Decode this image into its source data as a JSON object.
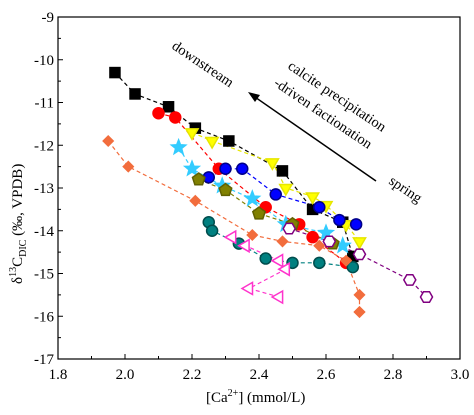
{
  "chart_data": {
    "type": "scatter",
    "xlim": [
      1.8,
      3.0
    ],
    "ylim": [
      -17,
      -9
    ],
    "x_ticks": [
      {
        "value": 1.8,
        "label": "1.8"
      },
      {
        "value": 2.0,
        "label": "2.0"
      },
      {
        "value": 2.2,
        "label": "2.2"
      },
      {
        "value": 2.4,
        "label": "2.4"
      },
      {
        "value": 2.6,
        "label": "2.6"
      },
      {
        "value": 2.8,
        "label": "2.8"
      },
      {
        "value": 3.0,
        "label": "3.0"
      }
    ],
    "y_ticks": [
      {
        "value": -9,
        "label": "-9"
      },
      {
        "value": -10,
        "label": "-10"
      },
      {
        "value": -11,
        "label": "-11"
      },
      {
        "value": -12,
        "label": "-12"
      },
      {
        "value": -13,
        "label": "-13"
      },
      {
        "value": -14,
        "label": "-14"
      },
      {
        "value": -15,
        "label": "-15"
      },
      {
        "value": -16,
        "label": "-16"
      },
      {
        "value": -17,
        "label": "-17"
      }
    ],
    "xlabel_parts": {
      "pre": "[Ca",
      "sup": "2+",
      "post": "] (mmol/L)"
    },
    "ylabel_parts": {
      "delta": "δ",
      "sup": "13",
      "c": "C",
      "sub": "DIC",
      "post": " (‰, VPDB)"
    },
    "annotations": {
      "downstream": "downstream",
      "line1": "calcite precipitation",
      "line2": "-driven factionation",
      "spring": "spring"
    },
    "grid": false,
    "series": [
      {
        "marker": "square",
        "color": "#000000",
        "edge": "#000000",
        "x": [
          1.97,
          2.03,
          2.13,
          2.21,
          2.31,
          2.47,
          2.56,
          2.65,
          2.68
        ],
        "y": [
          -10.3,
          -10.8,
          -11.1,
          -11.6,
          -11.9,
          -12.6,
          -13.5,
          -13.8,
          -14.6
        ]
      },
      {
        "marker": "circle",
        "color": "#ff0000",
        "edge": "#ff0000",
        "x": [
          2.1,
          2.15,
          2.28,
          2.42,
          2.52,
          2.56,
          2.66
        ],
        "y": [
          -11.25,
          -11.35,
          -12.55,
          -13.45,
          -13.85,
          -14.15,
          -14.75
        ]
      },
      {
        "marker": "triangle-down",
        "color": "#ffff00",
        "edge": "#e6e600",
        "x": [
          2.2,
          2.26,
          2.44,
          2.48,
          2.56,
          2.6,
          2.66,
          2.7
        ],
        "y": [
          -11.7,
          -11.9,
          -12.4,
          -13.0,
          -13.2,
          -13.4,
          -13.85,
          -14.25
        ]
      },
      {
        "marker": "circle",
        "color": "#0000ff",
        "edge": "#000088",
        "x": [
          2.25,
          2.3,
          2.35,
          2.45,
          2.58,
          2.64,
          2.69
        ],
        "y": [
          -12.75,
          -12.55,
          -12.55,
          -13.15,
          -13.45,
          -13.75,
          -13.85
        ]
      },
      {
        "marker": "star",
        "color": "#33ccff",
        "edge": "#33ccff",
        "x": [
          2.16,
          2.2,
          2.29,
          2.38,
          2.48,
          2.6,
          2.65
        ],
        "y": [
          -12.05,
          -12.55,
          -12.95,
          -13.25,
          -13.85,
          -14.05,
          -14.35
        ]
      },
      {
        "marker": "pentagon",
        "color": "#808000",
        "edge": "#606000",
        "x": [
          2.22,
          2.3,
          2.4,
          2.5,
          2.62
        ],
        "y": [
          -12.8,
          -13.05,
          -13.6,
          -13.85,
          -14.3
        ]
      },
      {
        "marker": "hexagon",
        "color": "#ffffff",
        "edge": "#800080",
        "x": [
          2.49,
          2.61,
          2.7,
          2.85,
          2.9
        ],
        "y": [
          -13.95,
          -14.25,
          -14.55,
          -15.15,
          -15.55
        ]
      },
      {
        "marker": "circle",
        "color": "#008080",
        "edge": "#004d4d",
        "x": [
          2.25,
          2.26,
          2.34,
          2.42,
          2.5,
          2.58,
          2.68
        ],
        "y": [
          -13.8,
          -14.0,
          -14.3,
          -14.65,
          -14.75,
          -14.75,
          -14.85
        ]
      },
      {
        "marker": "triangle-left",
        "color": "#ffffff",
        "edge": "#ff33cc",
        "x": [
          2.32,
          2.36,
          2.46,
          2.48,
          2.37,
          2.46
        ],
        "y": [
          -14.15,
          -14.35,
          -14.7,
          -14.9,
          -15.35,
          -15.55
        ]
      },
      {
        "marker": "diamond",
        "color": "#f26d3d",
        "edge": "#f26d3d",
        "x": [
          1.95,
          2.01,
          2.21,
          2.38,
          2.47,
          2.58,
          2.66,
          2.7,
          2.7,
          2.7
        ],
        "y": [
          -11.9,
          -12.5,
          -13.3,
          -14.1,
          -14.25,
          -14.35,
          -14.7,
          -15.5,
          -15.9,
          -15.9
        ]
      }
    ]
  }
}
